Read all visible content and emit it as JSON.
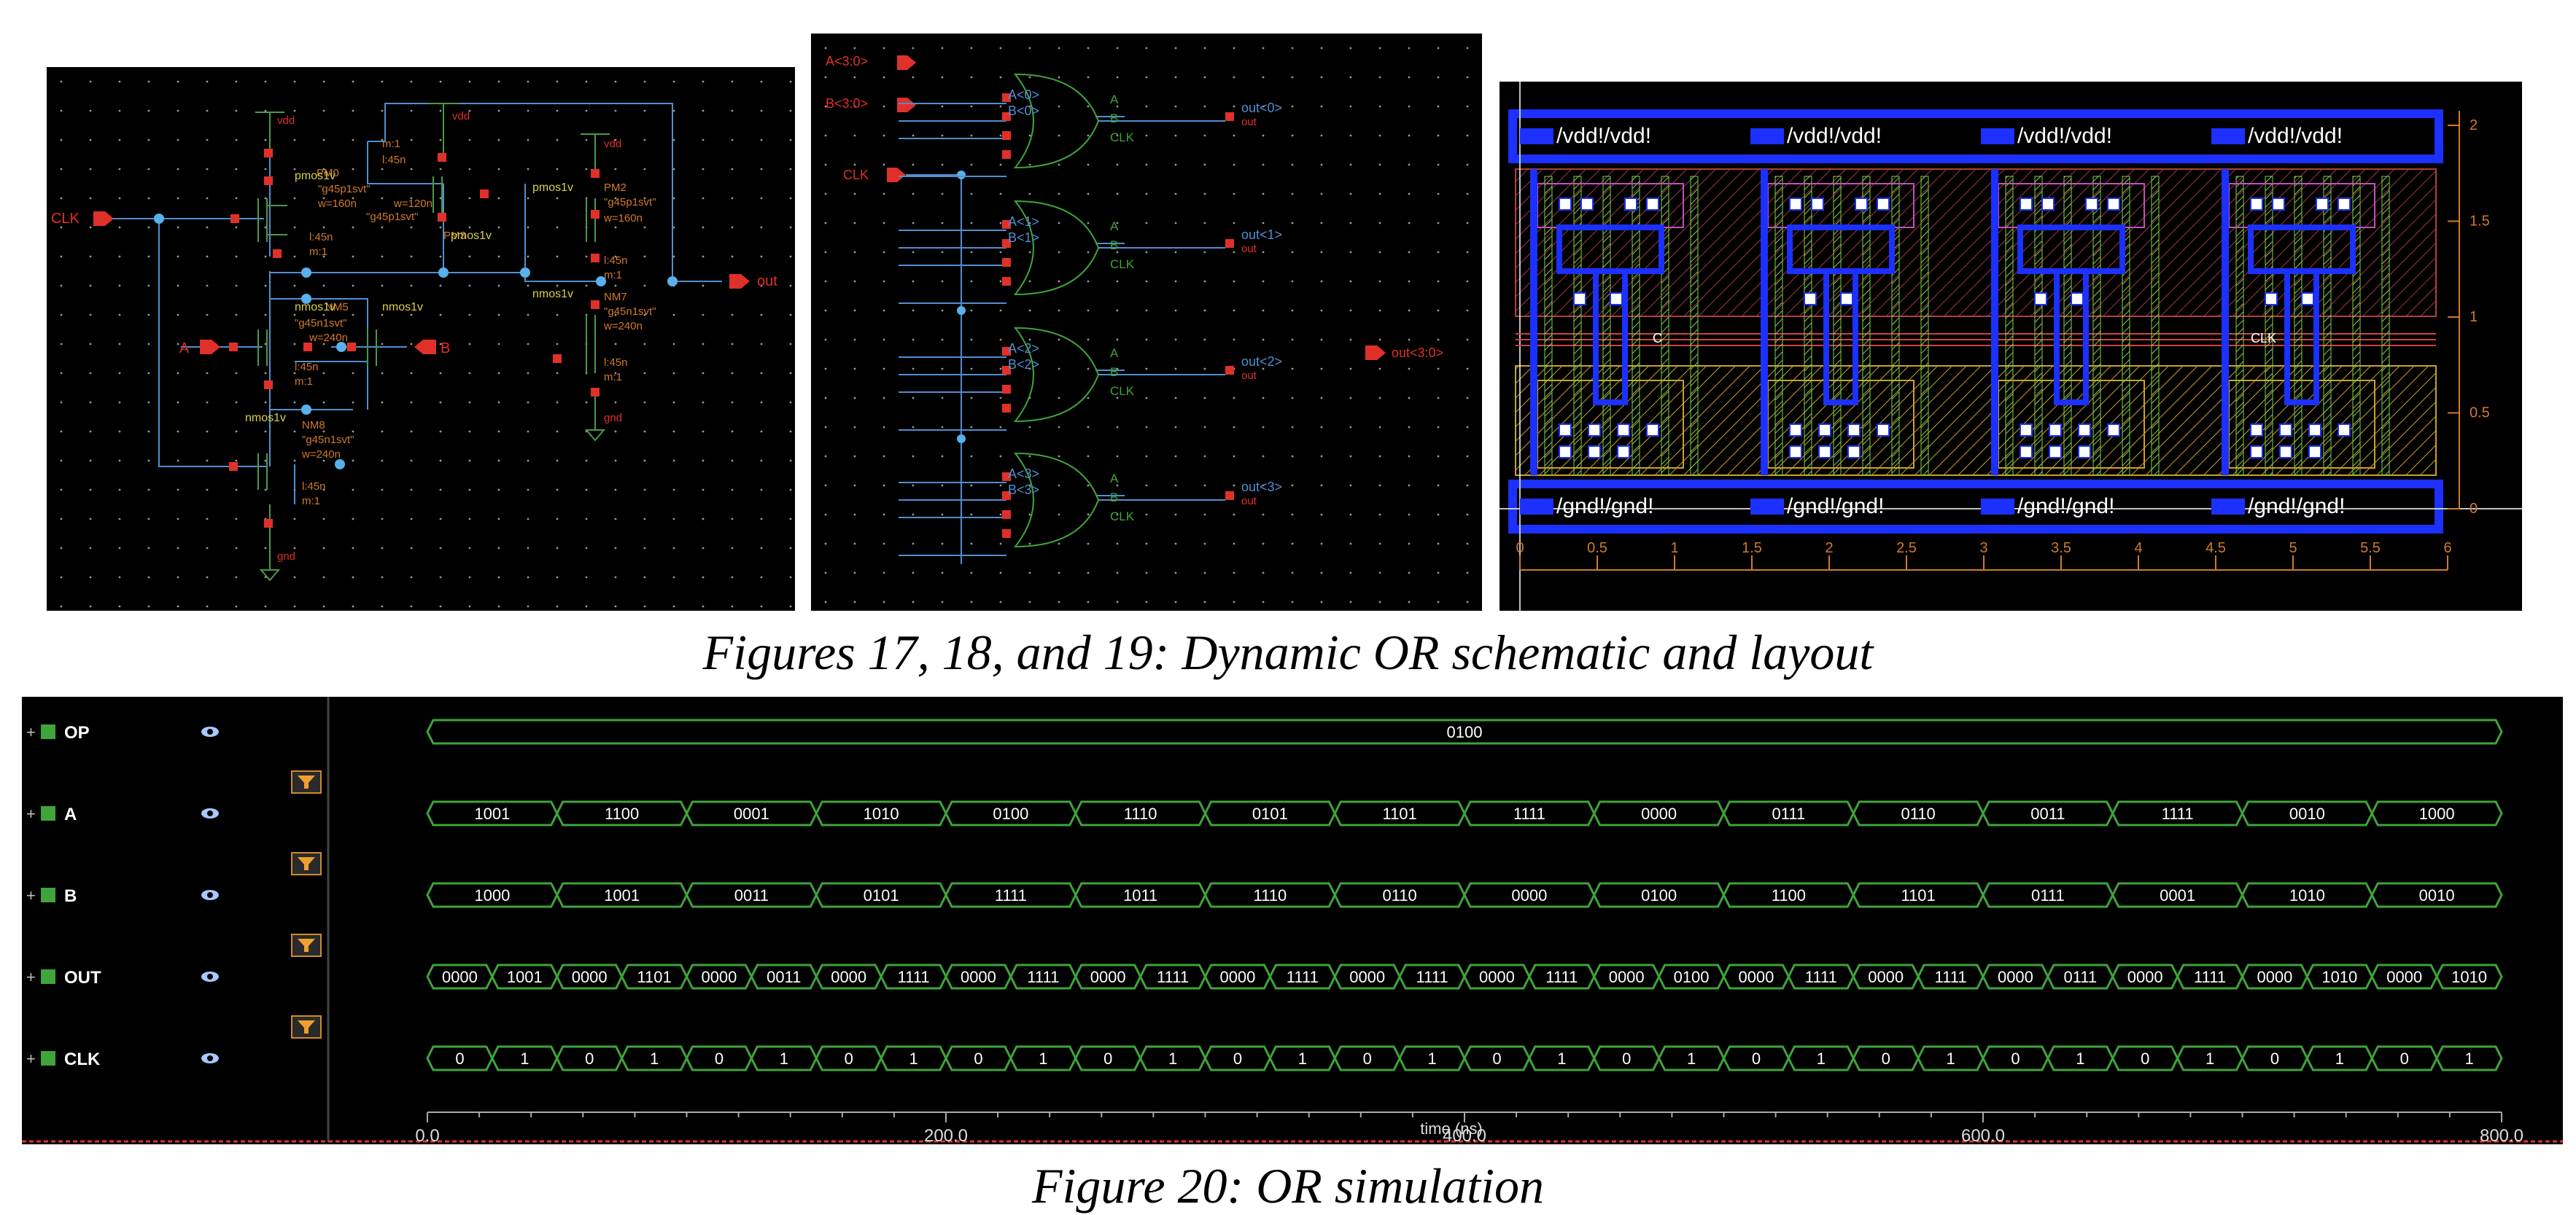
{
  "captions": {
    "schematic_layout": "Figures 17, 18, and 19: Dynamic OR schematic and layout",
    "simulation": "Figure 20: OR simulation"
  },
  "fig17": {
    "pins": {
      "clk": "CLK",
      "a": "A",
      "b": "B",
      "out": "out"
    },
    "supplies": {
      "vdd": "vdd",
      "gnd": "gnd"
    },
    "devices": {
      "pmos_label": "pmos1v",
      "nmos_label": "nmos1v",
      "pm0": "PM0",
      "pm2": "PM2",
      "pm3": "PM3",
      "nm5": "NM5",
      "nm7": "NM7",
      "nm8": "NM8",
      "p_model": "\"g45p1svt\"",
      "n_model": "\"g45n1svt\"",
      "l45": "l:45n",
      "m1": "m:1",
      "w160": "w=160n",
      "w120": "w=120n",
      "w240": "w=240n"
    }
  },
  "fig18": {
    "buses": {
      "a": "A<3:0>",
      "b": "B<3:0>",
      "clk": "CLK",
      "out": "out<3:0>"
    },
    "gates": [
      {
        "a": "A<0>",
        "b": "B<0>",
        "out": "out<0>"
      },
      {
        "a": "A<1>",
        "b": "B<1>",
        "out": "out<1>"
      },
      {
        "a": "A<2>",
        "b": "B<2>",
        "out": "out<2>"
      },
      {
        "a": "A<3>",
        "b": "B<3>",
        "out": "out<3>"
      }
    ],
    "gate_pins": {
      "a": "A",
      "b": "B",
      "clk": "CLK",
      "out": "out"
    }
  },
  "fig19": {
    "rail_top": "/vdd!/vdd!",
    "rail_bottom": "/gnd!/gnd!",
    "clk_label": "CLK",
    "c_label": "C",
    "x_ticks": [
      "0",
      "0.5",
      "1",
      "1.5",
      "2",
      "2.5",
      "3",
      "3.5",
      "4",
      "4.5",
      "5",
      "5.5",
      "6"
    ],
    "y_ticks": [
      "0",
      "0.5",
      "1",
      "1.5",
      "2"
    ]
  },
  "fig20": {
    "signals": [
      {
        "name": "OP",
        "values": [
          "0100"
        ]
      },
      {
        "name": "A",
        "values": [
          "1001",
          "1100",
          "0001",
          "1010",
          "0100",
          "1110",
          "0101",
          "1101",
          "1111",
          "0000",
          "0111",
          "0110",
          "0011",
          "1111",
          "0010",
          "1000"
        ]
      },
      {
        "name": "B",
        "values": [
          "1000",
          "1001",
          "0011",
          "0101",
          "1111",
          "1011",
          "1110",
          "0110",
          "0000",
          "0100",
          "1100",
          "1101",
          "0111",
          "0001",
          "1010",
          "0010"
        ]
      },
      {
        "name": "OUT",
        "values": [
          "0000",
          "1001",
          "0000",
          "1101",
          "0000",
          "0011",
          "0000",
          "1111",
          "0000",
          "1111",
          "0000",
          "1111",
          "0000",
          "1111",
          "0000",
          "1111",
          "0000",
          "1111",
          "0000",
          "0100",
          "0000",
          "1111",
          "0000",
          "1111",
          "0000",
          "0111",
          "0000",
          "1111",
          "0000",
          "1010",
          "0000",
          "1010"
        ]
      },
      {
        "name": "CLK",
        "values": [
          "0",
          "1",
          "0",
          "1",
          "0",
          "1",
          "0",
          "1",
          "0",
          "1",
          "0",
          "1",
          "0",
          "1",
          "0",
          "1",
          "0",
          "1",
          "0",
          "1",
          "0",
          "1",
          "0",
          "1",
          "0",
          "1",
          "0",
          "1",
          "0",
          "1",
          "0",
          "1"
        ]
      }
    ],
    "x_ticks": [
      "0.0",
      "200.0",
      "400.0",
      "600.0",
      "800.0"
    ],
    "x_label": "time (ns)",
    "colors": {
      "wave": "#3fa43a",
      "background": "#000000",
      "cursor": "#e03030"
    }
  }
}
